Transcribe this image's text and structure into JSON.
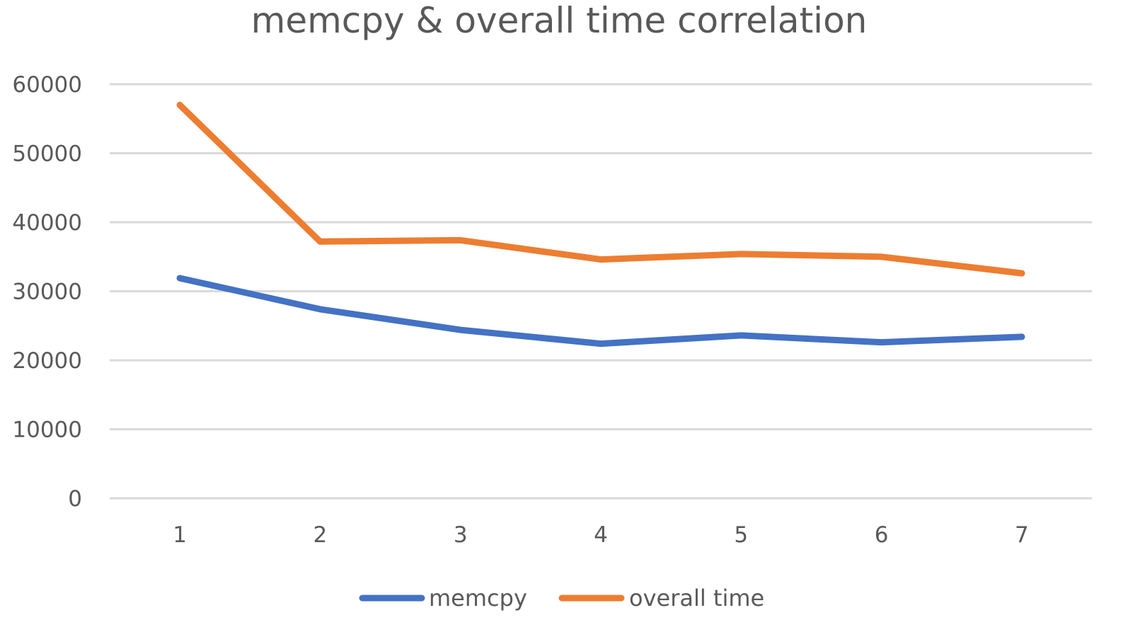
{
  "chart_data": {
    "type": "line",
    "title": "memcpy & overall time correlation",
    "xlabel": "",
    "ylabel": "",
    "categories": [
      "1",
      "2",
      "3",
      "4",
      "5",
      "6",
      "7"
    ],
    "ylim": [
      0,
      60000
    ],
    "yticks": [
      0,
      10000,
      20000,
      30000,
      40000,
      50000,
      60000
    ],
    "grid": true,
    "legend": "bottom",
    "series": [
      {
        "name": "memcpy",
        "color": "#4472c4",
        "values": [
          31900,
          27400,
          24400,
          22400,
          23600,
          22600,
          23400
        ]
      },
      {
        "name": "overall time",
        "color": "#ed7d31",
        "values": [
          57000,
          37200,
          37400,
          34600,
          35400,
          35000,
          32600
        ]
      }
    ]
  }
}
